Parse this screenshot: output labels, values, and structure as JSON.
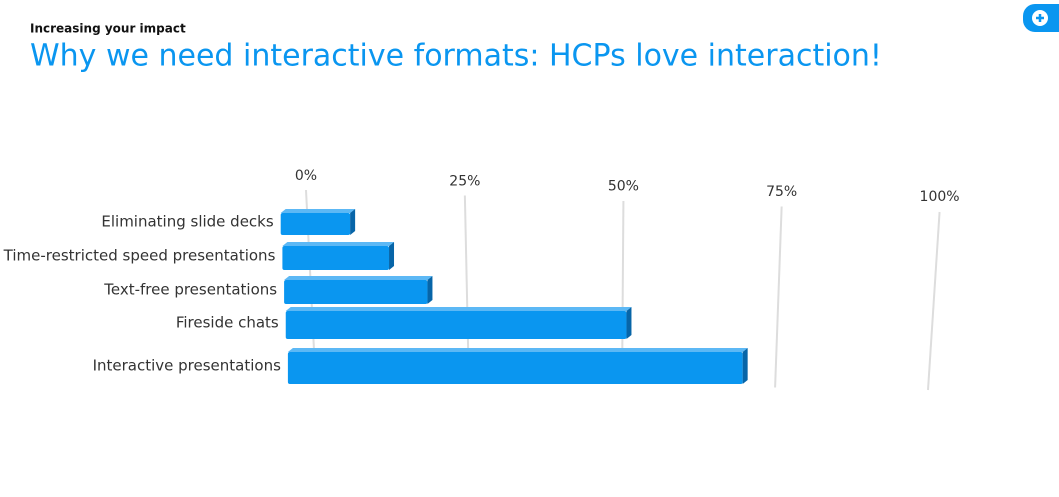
{
  "header": {
    "kicker": "Increasing your impact",
    "title": "Why we need interactive formats: HCPs love interaction!"
  },
  "chart_data": {
    "type": "bar",
    "orientation": "horizontal",
    "categories": [
      "Eliminating slide decks",
      "Time-restricted speed presentations",
      "Text-free presentations",
      "Fireside chats",
      "Interactive presentations"
    ],
    "values": [
      11,
      17,
      23,
      55,
      74
    ],
    "color": "#0a96f0",
    "xlim": [
      0,
      100
    ],
    "xticks": [
      {
        "value": 0,
        "label": "0%"
      },
      {
        "value": 25,
        "label": "25%"
      },
      {
        "value": 50,
        "label": "50%"
      },
      {
        "value": 75,
        "label": "75%"
      },
      {
        "value": 100,
        "label": "100%"
      }
    ],
    "grid": true
  }
}
